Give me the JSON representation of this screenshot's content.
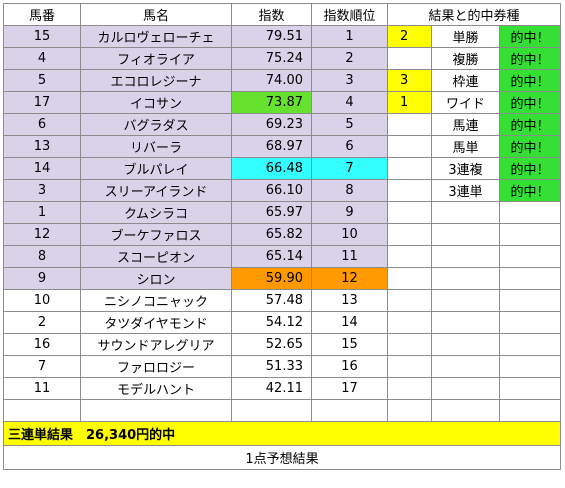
{
  "headers": {
    "umaban": "馬番",
    "bamei": "馬名",
    "shisu": "指数",
    "rank": "指数順位",
    "result": "結果と的中券種"
  },
  "horses": [
    {
      "umaban": "15",
      "name": "カルロヴェローチェ",
      "index": "79.51",
      "rank": "1"
    },
    {
      "umaban": "4",
      "name": "フィオライア",
      "index": "75.24",
      "rank": "2"
    },
    {
      "umaban": "5",
      "name": "エコロレジーナ",
      "index": "74.00",
      "rank": "3"
    },
    {
      "umaban": "17",
      "name": "イコサン",
      "index": "73.87",
      "rank": "4"
    },
    {
      "umaban": "6",
      "name": "バグラダス",
      "index": "69.23",
      "rank": "5"
    },
    {
      "umaban": "13",
      "name": "リバーラ",
      "index": "68.97",
      "rank": "6"
    },
    {
      "umaban": "14",
      "name": "ブルパレイ",
      "index": "66.48",
      "rank": "7"
    },
    {
      "umaban": "3",
      "name": "スリーアイランド",
      "index": "66.10",
      "rank": "8"
    },
    {
      "umaban": "1",
      "name": "クムシラコ",
      "index": "65.97",
      "rank": "9"
    },
    {
      "umaban": "12",
      "name": "ブーケファロス",
      "index": "65.82",
      "rank": "10"
    },
    {
      "umaban": "8",
      "name": "スコーピオン",
      "index": "65.14",
      "rank": "11"
    },
    {
      "umaban": "9",
      "name": "シロン",
      "index": "59.90",
      "rank": "12"
    },
    {
      "umaban": "10",
      "name": "ニシノコニャック",
      "index": "57.48",
      "rank": "13"
    },
    {
      "umaban": "2",
      "name": "タツダイヤモンド",
      "index": "54.12",
      "rank": "14"
    },
    {
      "umaban": "16",
      "name": "サウンドアレグリア",
      "index": "52.65",
      "rank": "15"
    },
    {
      "umaban": "7",
      "name": "ファロロジー",
      "index": "51.33",
      "rank": "16"
    },
    {
      "umaban": "11",
      "name": "モデルハント",
      "index": "42.11",
      "rank": "17"
    }
  ],
  "results": [
    {
      "pos": "2",
      "type": "単勝",
      "hit": "的中！"
    },
    {
      "pos": "",
      "type": "複勝",
      "hit": "的中！"
    },
    {
      "pos": "3",
      "type": "枠連",
      "hit": "的中！"
    },
    {
      "pos": "1",
      "type": "ワイド",
      "hit": "的中！"
    },
    {
      "pos": "",
      "type": "馬連",
      "hit": "的中！"
    },
    {
      "pos": "",
      "type": "馬単",
      "hit": "的中！"
    },
    {
      "pos": "",
      "type": "3連複",
      "hit": "的中！"
    },
    {
      "pos": "",
      "type": "3連単",
      "hit": "的中！"
    }
  ],
  "summary": "三連単結果　26,340円的中",
  "footer": "1点予想結果",
  "colors": {
    "purple": "#d9d2e9",
    "green": "#66e22e",
    "cyan": "#33ffff",
    "orange": "#ff9900",
    "yellow": "#ffff00",
    "hit_green": "#33e033"
  }
}
